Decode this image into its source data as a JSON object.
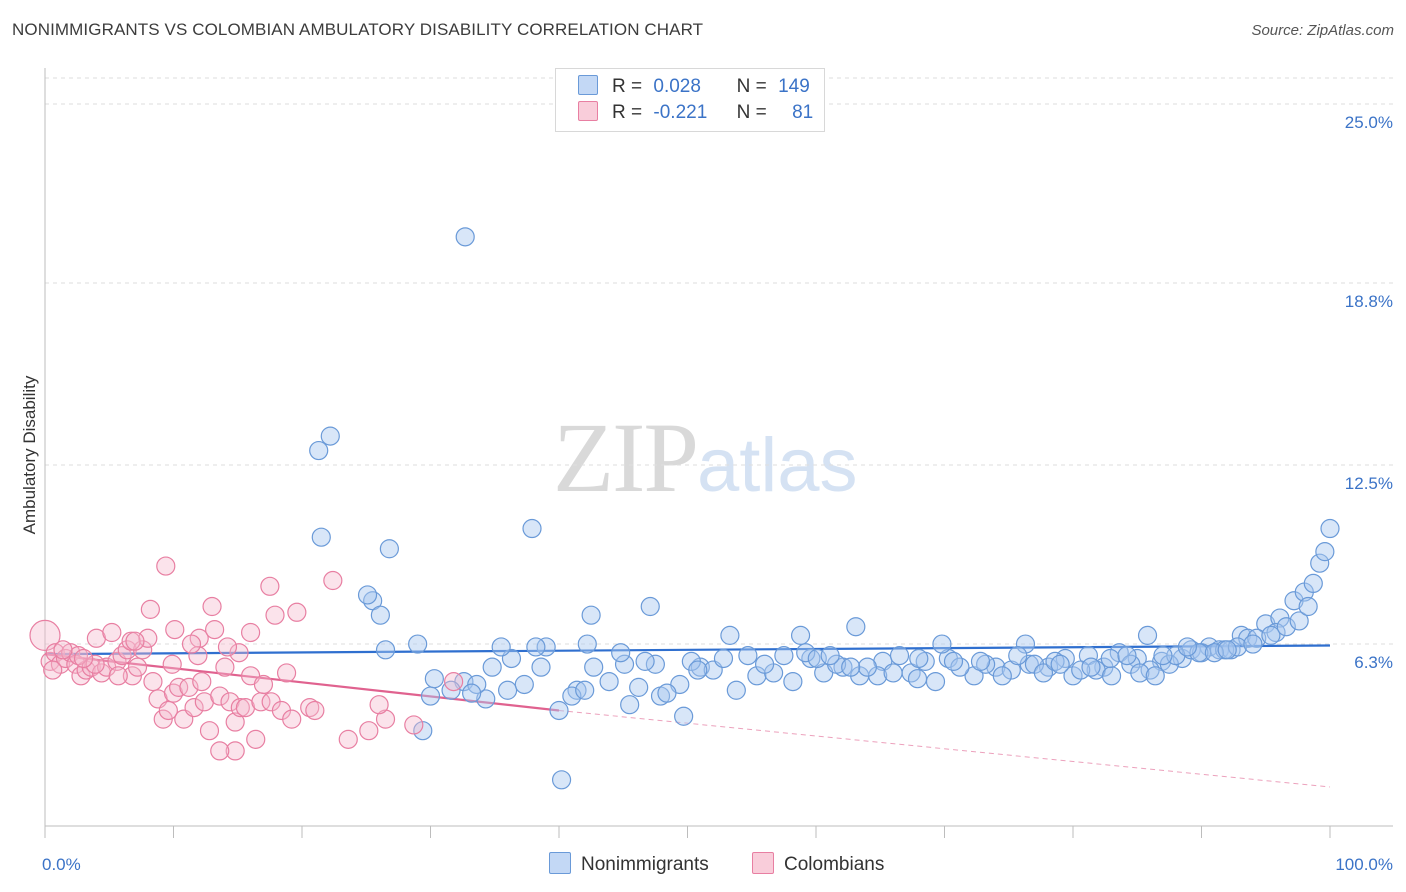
{
  "header": {
    "title": "NONIMMIGRANTS VS COLOMBIAN AMBULATORY DISABILITY CORRELATION CHART",
    "source": "Source: ZipAtlas.com"
  },
  "watermark": {
    "zip": "ZIP",
    "atlas": "atlas"
  },
  "legend_top": {
    "rows": [
      {
        "r_label": "R =",
        "r_value": "0.028",
        "n_label": "N =",
        "n_value": "149"
      },
      {
        "r_label": "R =",
        "r_value": "-0.221",
        "n_label": "N =",
        "n_value": "81"
      }
    ]
  },
  "legend_bottom": {
    "items": [
      "Nonimmigrants",
      "Colombians"
    ]
  },
  "colors": {
    "blue_fill": "#a9c8f0",
    "blue_stroke": "#6a9ad8",
    "blue_line": "#2f6fcf",
    "pink_fill": "#f6b9cc",
    "pink_stroke": "#e87fa2",
    "pink_line": "#e0628f",
    "tick_label": "#3b73c7",
    "grid": "#dedede"
  },
  "chart_data": {
    "type": "scatter",
    "title": "NONIMMIGRANTS VS COLOMBIAN AMBULATORY DISABILITY CORRELATION CHART",
    "xlabel": "",
    "ylabel": "Ambulatory Disability",
    "xlim": [
      0,
      100
    ],
    "ylim": [
      0,
      25.9
    ],
    "x_tick_labels": [
      "0.0%",
      "100.0%"
    ],
    "y_ticks": [
      6.3,
      12.5,
      18.8,
      25.0
    ],
    "y_tick_labels": [
      "6.3%",
      "12.5%",
      "18.8%",
      "25.0%"
    ],
    "grid": true,
    "legend_position": "top-center",
    "series": [
      {
        "name": "Nonimmigrants",
        "r": 0.028,
        "n": 149,
        "trend": {
          "x": [
            0,
            100
          ],
          "y": [
            5.95,
            6.25
          ]
        },
        "points": [
          [
            32.7,
            20.4
          ],
          [
            21.3,
            13.0
          ],
          [
            22.2,
            13.5
          ],
          [
            21.5,
            10.0
          ],
          [
            26.8,
            9.6
          ],
          [
            37.9,
            10.3
          ],
          [
            25.5,
            7.8
          ],
          [
            26.1,
            7.3
          ],
          [
            25.1,
            8.0
          ],
          [
            26.5,
            6.1
          ],
          [
            29.0,
            6.3
          ],
          [
            36.3,
            5.8
          ],
          [
            39.0,
            6.2
          ],
          [
            42.2,
            6.3
          ],
          [
            35.5,
            6.2
          ],
          [
            38.2,
            6.2
          ],
          [
            42.5,
            7.3
          ],
          [
            47.1,
            7.6
          ],
          [
            51.0,
            5.5
          ],
          [
            53.3,
            6.6
          ],
          [
            54.7,
            5.9
          ],
          [
            57.5,
            5.9
          ],
          [
            59.6,
            5.8
          ],
          [
            59.2,
            6.0
          ],
          [
            62.1,
            5.5
          ],
          [
            65.2,
            5.7
          ],
          [
            66.5,
            5.9
          ],
          [
            68.5,
            5.7
          ],
          [
            70.3,
            5.8
          ],
          [
            72.3,
            5.2
          ],
          [
            74.0,
            5.5
          ],
          [
            76.6,
            5.6
          ],
          [
            78.1,
            5.5
          ],
          [
            79.4,
            5.8
          ],
          [
            81.2,
            5.9
          ],
          [
            82.4,
            5.5
          ],
          [
            83.6,
            6.0
          ],
          [
            85.0,
            5.8
          ],
          [
            86.9,
            5.7
          ],
          [
            88.5,
            5.8
          ],
          [
            89.2,
            6.1
          ],
          [
            90.6,
            6.2
          ],
          [
            91.4,
            6.1
          ],
          [
            92.3,
            6.1
          ],
          [
            93.1,
            6.6
          ],
          [
            95.0,
            7.0
          ],
          [
            96.1,
            7.2
          ],
          [
            97.2,
            7.8
          ],
          [
            98.0,
            8.1
          ],
          [
            98.7,
            8.4
          ],
          [
            99.2,
            9.1
          ],
          [
            99.6,
            9.5
          ],
          [
            100.0,
            10.3
          ],
          [
            95.8,
            6.7
          ],
          [
            93.6,
            6.5
          ],
          [
            40.2,
            1.6
          ],
          [
            32.6,
            5.0
          ],
          [
            31.6,
            4.7
          ],
          [
            34.3,
            4.4
          ],
          [
            33.6,
            4.9
          ],
          [
            36.0,
            4.7
          ],
          [
            30.0,
            4.5
          ],
          [
            40.0,
            4.0
          ],
          [
            41.4,
            4.7
          ],
          [
            42.7,
            5.5
          ],
          [
            43.9,
            5.0
          ],
          [
            45.1,
            5.6
          ],
          [
            46.2,
            4.8
          ],
          [
            47.9,
            4.5
          ],
          [
            49.4,
            4.9
          ],
          [
            50.3,
            5.7
          ],
          [
            52.0,
            5.4
          ],
          [
            53.8,
            4.7
          ],
          [
            55.4,
            5.2
          ],
          [
            56.7,
            5.3
          ],
          [
            58.2,
            5.0
          ],
          [
            60.6,
            5.3
          ],
          [
            61.6,
            5.6
          ],
          [
            63.4,
            5.2
          ],
          [
            64.8,
            5.2
          ],
          [
            67.4,
            5.3
          ],
          [
            69.3,
            5.0
          ],
          [
            71.2,
            5.5
          ],
          [
            73.2,
            5.6
          ],
          [
            75.2,
            5.4
          ],
          [
            77.0,
            5.6
          ],
          [
            80.0,
            5.2
          ],
          [
            81.8,
            5.4
          ],
          [
            83.0,
            5.2
          ],
          [
            84.5,
            5.6
          ],
          [
            86.0,
            5.4
          ],
          [
            87.5,
            5.6
          ],
          [
            88.0,
            5.9
          ],
          [
            90.0,
            6.0
          ],
          [
            91.8,
            6.1
          ],
          [
            92.8,
            6.2
          ],
          [
            94.3,
            6.5
          ],
          [
            95.4,
            6.6
          ],
          [
            96.6,
            6.9
          ],
          [
            97.6,
            7.1
          ],
          [
            98.3,
            7.6
          ],
          [
            45.5,
            4.2
          ],
          [
            49.7,
            3.8
          ],
          [
            44.8,
            6.0
          ],
          [
            58.8,
            6.6
          ],
          [
            63.1,
            6.9
          ],
          [
            69.8,
            6.3
          ],
          [
            76.3,
            6.3
          ],
          [
            85.8,
            6.6
          ],
          [
            29.4,
            3.3
          ],
          [
            41.0,
            4.5
          ],
          [
            48.4,
            4.6
          ],
          [
            47.5,
            5.6
          ],
          [
            52.8,
            5.8
          ],
          [
            60.1,
            5.8
          ],
          [
            64.0,
            5.5
          ],
          [
            66.0,
            5.3
          ],
          [
            67.9,
            5.1
          ],
          [
            72.8,
            5.7
          ],
          [
            74.5,
            5.2
          ],
          [
            77.7,
            5.3
          ],
          [
            78.6,
            5.7
          ],
          [
            80.6,
            5.4
          ],
          [
            81.4,
            5.5
          ],
          [
            82.9,
            5.8
          ],
          [
            84.2,
            5.9
          ],
          [
            85.2,
            5.3
          ],
          [
            86.4,
            5.2
          ],
          [
            87.0,
            5.9
          ],
          [
            89.8,
            6.0
          ],
          [
            91.0,
            6.0
          ],
          [
            94.0,
            6.3
          ],
          [
            42.0,
            4.7
          ],
          [
            38.6,
            5.5
          ],
          [
            37.3,
            4.9
          ],
          [
            34.8,
            5.5
          ],
          [
            30.3,
            5.1
          ],
          [
            70.7,
            5.7
          ],
          [
            75.7,
            5.9
          ],
          [
            79.0,
            5.6
          ],
          [
            88.9,
            6.2
          ],
          [
            92.0,
            6.1
          ],
          [
            56.0,
            5.6
          ],
          [
            61.1,
            5.9
          ],
          [
            62.7,
            5.5
          ],
          [
            68.0,
            5.8
          ],
          [
            50.8,
            5.4
          ],
          [
            46.7,
            5.7
          ],
          [
            33.2,
            4.6
          ]
        ]
      },
      {
        "name": "Colombians",
        "r": -0.221,
        "n": 81,
        "trend": {
          "x": [
            0,
            40
          ],
          "y": [
            5.95,
            4.0
          ]
        },
        "trend_extension": {
          "x": [
            40,
            100
          ],
          "y": [
            4.0,
            1.35
          ]
        },
        "points": [
          [
            0.0,
            6.6
          ],
          [
            0.4,
            5.7
          ],
          [
            0.8,
            6.0
          ],
          [
            1.2,
            5.6
          ],
          [
            1.6,
            5.8
          ],
          [
            2.0,
            6.0
          ],
          [
            2.4,
            5.6
          ],
          [
            2.8,
            5.2
          ],
          [
            3.2,
            5.4
          ],
          [
            3.6,
            5.5
          ],
          [
            4.0,
            6.5
          ],
          [
            4.4,
            5.3
          ],
          [
            4.8,
            5.5
          ],
          [
            5.2,
            6.7
          ],
          [
            5.6,
            5.7
          ],
          [
            6.0,
            5.9
          ],
          [
            6.4,
            6.1
          ],
          [
            6.8,
            5.2
          ],
          [
            7.2,
            5.5
          ],
          [
            7.6,
            6.1
          ],
          [
            8.0,
            6.5
          ],
          [
            8.4,
            5.0
          ],
          [
            8.8,
            4.4
          ],
          [
            9.2,
            3.7
          ],
          [
            9.6,
            4.0
          ],
          [
            10.0,
            4.6
          ],
          [
            10.4,
            4.8
          ],
          [
            10.8,
            3.7
          ],
          [
            11.2,
            4.8
          ],
          [
            11.6,
            4.1
          ],
          [
            12.0,
            6.5
          ],
          [
            12.4,
            4.3
          ],
          [
            12.8,
            3.3
          ],
          [
            13.2,
            6.8
          ],
          [
            13.6,
            4.5
          ],
          [
            14.0,
            5.5
          ],
          [
            14.4,
            4.3
          ],
          [
            14.8,
            3.6
          ],
          [
            15.2,
            4.1
          ],
          [
            15.6,
            4.1
          ],
          [
            16.0,
            5.2
          ],
          [
            16.4,
            3.0
          ],
          [
            16.8,
            4.3
          ],
          [
            17.6,
            4.3
          ],
          [
            18.4,
            4.0
          ],
          [
            9.4,
            9.0
          ],
          [
            17.5,
            8.3
          ],
          [
            22.4,
            8.5
          ],
          [
            17.9,
            7.3
          ],
          [
            19.6,
            7.4
          ],
          [
            14.8,
            2.6
          ],
          [
            23.6,
            3.0
          ],
          [
            26.5,
            3.7
          ],
          [
            28.7,
            3.5
          ],
          [
            31.8,
            5.0
          ],
          [
            26.0,
            4.2
          ],
          [
            10.1,
            6.8
          ],
          [
            11.9,
            5.9
          ],
          [
            13.0,
            7.6
          ],
          [
            15.1,
            6.0
          ],
          [
            16.0,
            6.7
          ],
          [
            13.6,
            2.6
          ],
          [
            20.6,
            4.1
          ],
          [
            8.2,
            7.5
          ],
          [
            6.7,
            6.4
          ],
          [
            5.7,
            5.2
          ],
          [
            3.9,
            5.6
          ],
          [
            2.6,
            5.9
          ],
          [
            1.4,
            6.1
          ],
          [
            0.6,
            5.4
          ],
          [
            7.0,
            6.4
          ],
          [
            9.9,
            5.6
          ],
          [
            11.4,
            6.3
          ],
          [
            12.2,
            5.0
          ],
          [
            14.2,
            6.2
          ],
          [
            17.0,
            4.9
          ],
          [
            19.2,
            3.7
          ],
          [
            25.2,
            3.3
          ],
          [
            18.8,
            5.3
          ],
          [
            21.0,
            4.0
          ],
          [
            3.0,
            5.8
          ]
        ]
      }
    ]
  }
}
